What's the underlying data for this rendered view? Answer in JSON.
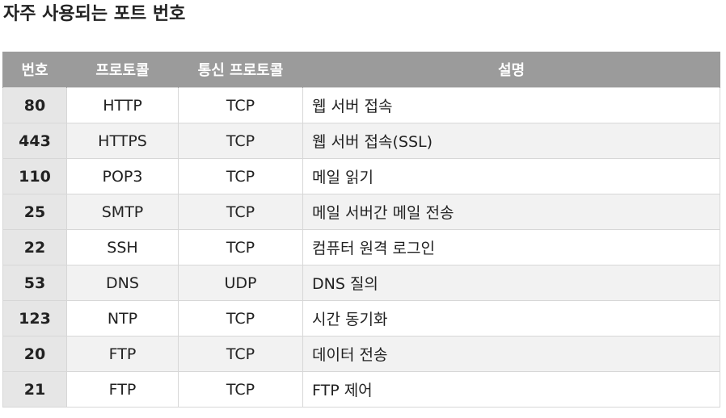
{
  "title": "자주 사용되는 포트 번호",
  "table": {
    "headers": [
      "번호",
      "프로토콜",
      "통신 프로토콜",
      "설명"
    ],
    "rows": [
      {
        "port": "80",
        "protocol": "HTTP",
        "transport": "TCP",
        "description": "웹 서버 접속"
      },
      {
        "port": "443",
        "protocol": "HTTPS",
        "transport": "TCP",
        "description": "웹 서버 접속(SSL)"
      },
      {
        "port": "110",
        "protocol": "POP3",
        "transport": "TCP",
        "description": "메일 읽기"
      },
      {
        "port": "25",
        "protocol": "SMTP",
        "transport": "TCP",
        "description": "메일 서버간 메일 전송"
      },
      {
        "port": "22",
        "protocol": "SSH",
        "transport": "TCP",
        "description": "컴퓨터 원격 로그인"
      },
      {
        "port": "53",
        "protocol": "DNS",
        "transport": "UDP",
        "description": "DNS 질의"
      },
      {
        "port": "123",
        "protocol": "NTP",
        "transport": "TCP",
        "description": "시간 동기화"
      },
      {
        "port": "20",
        "protocol": "FTP",
        "transport": "TCP",
        "description": "데이터 전송"
      },
      {
        "port": "21",
        "protocol": "FTP",
        "transport": "TCP",
        "description": "FTP 제어"
      }
    ]
  },
  "colors": {
    "header_bg": "#9b9b9b",
    "header_text": "#ffffff",
    "number_cell_bg": "#e6e6e6",
    "alt_row_bg": "#f2f2f2",
    "border": "#d7d7d7"
  }
}
